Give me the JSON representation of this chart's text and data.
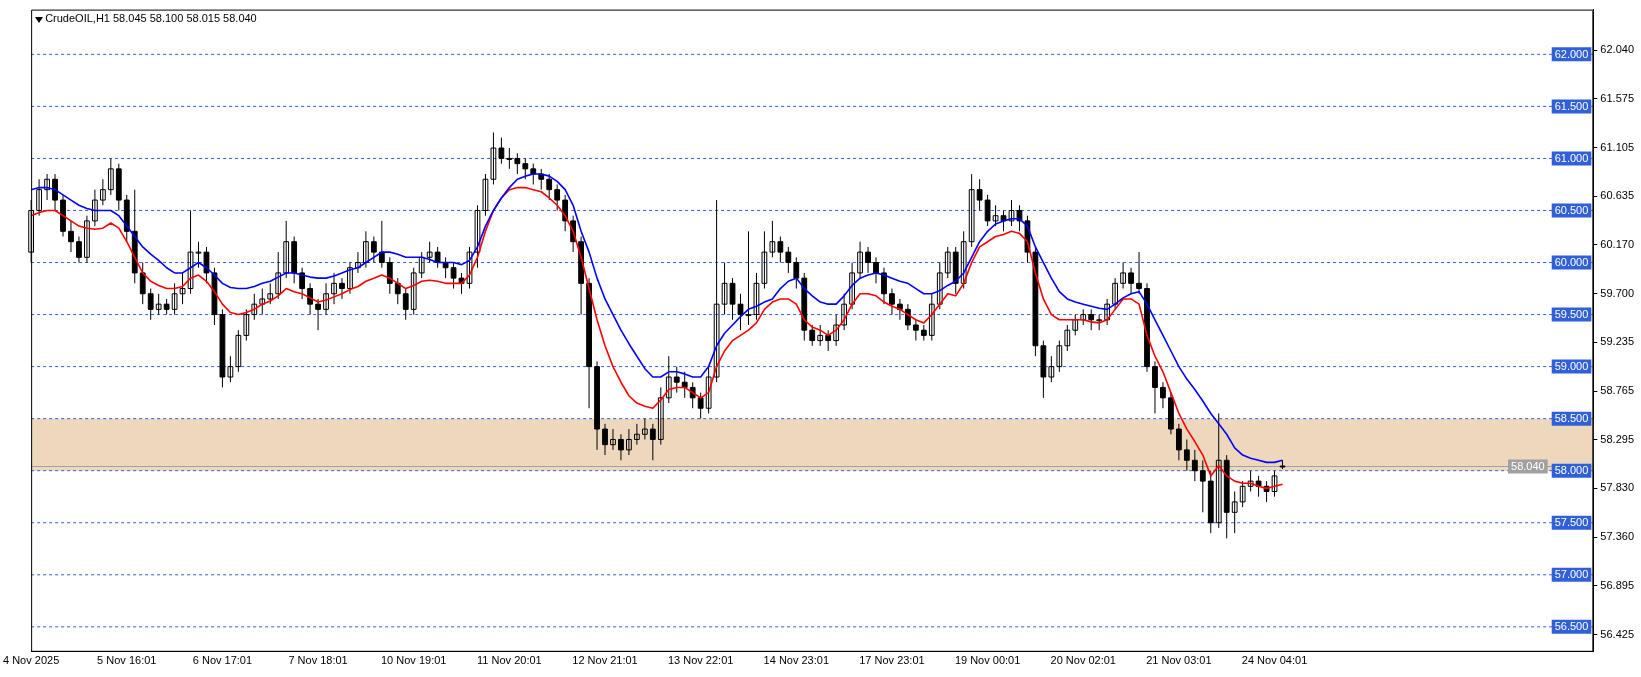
{
  "chart_data": {
    "type": "candlestick",
    "title": "CrudeOIL,H1 58.045 58.100 58.015 58.040",
    "color": "#000000",
    "categories": [
      "4 Nov 2025",
      null,
      null,
      null,
      null,
      null,
      null,
      null,
      null,
      null,
      null,
      null,
      "5 Nov 16:01",
      null,
      null,
      null,
      null,
      null,
      null,
      null,
      null,
      null,
      null,
      null,
      "6 Nov 17:01",
      null,
      null,
      null,
      null,
      null,
      null,
      null,
      null,
      null,
      null,
      null,
      "7 Nov 18:01",
      null,
      null,
      null,
      null,
      null,
      null,
      null,
      null,
      null,
      null,
      null,
      "10 Nov 19:01",
      null,
      null,
      null,
      null,
      null,
      null,
      null,
      null,
      null,
      null,
      null,
      "11 Nov 20:01",
      null,
      null,
      null,
      null,
      null,
      null,
      null,
      null,
      null,
      null,
      null,
      "12 Nov 21:01",
      null,
      null,
      null,
      null,
      null,
      null,
      null,
      null,
      null,
      null,
      null,
      "13 Nov 22:01",
      null,
      null,
      null,
      null,
      null,
      null,
      null,
      null,
      null,
      null,
      null,
      "14 Nov 23:01",
      null,
      null,
      null,
      null,
      null,
      null,
      null,
      null,
      null,
      null,
      null,
      "17 Nov 23:01",
      null,
      null,
      null,
      null,
      null,
      null,
      null,
      null,
      null,
      null,
      null,
      "19 Nov 00:01",
      null,
      null,
      null,
      null,
      null,
      null,
      null,
      null,
      null,
      null,
      null,
      "20 Nov 02:01",
      null,
      null,
      null,
      null,
      null,
      null,
      null,
      null,
      null,
      null,
      null,
      "21 Nov 03:01",
      null,
      null,
      null,
      null,
      null,
      null,
      null,
      null,
      null,
      null,
      null,
      "24 Nov 04:01",
      null,
      null,
      null,
      null,
      null,
      null,
      null,
      null,
      null,
      null,
      null,
      null,
      null,
      null,
      null,
      null,
      null,
      null,
      null,
      null,
      null,
      null,
      null,
      null,
      null,
      null,
      null,
      null,
      null,
      null,
      null,
      null,
      null,
      null,
      null,
      null,
      null,
      null,
      null,
      null
    ],
    "ohlc": [
      [
        60.1,
        60.6,
        60.0,
        60.5
      ],
      [
        60.5,
        60.8,
        60.45,
        60.7
      ],
      [
        60.7,
        60.85,
        60.6,
        60.8
      ],
      [
        60.8,
        60.85,
        60.5,
        60.6
      ],
      [
        60.6,
        60.65,
        60.25,
        60.3
      ],
      [
        60.3,
        60.4,
        60.1,
        60.2
      ],
      [
        60.2,
        60.25,
        60.0,
        60.05
      ],
      [
        60.05,
        60.45,
        60.0,
        60.4
      ],
      [
        60.4,
        60.7,
        60.35,
        60.6
      ],
      [
        60.6,
        60.8,
        60.55,
        60.7
      ],
      [
        60.7,
        61.0,
        60.65,
        60.9
      ],
      [
        60.9,
        60.95,
        60.5,
        60.6
      ],
      [
        60.6,
        60.65,
        60.2,
        60.3
      ],
      [
        60.3,
        60.7,
        59.8,
        59.9
      ],
      [
        59.9,
        60.0,
        59.6,
        59.7
      ],
      [
        59.7,
        59.75,
        59.45,
        59.55
      ],
      [
        59.55,
        59.7,
        59.5,
        59.6
      ],
      [
        59.6,
        59.65,
        59.5,
        59.55
      ],
      [
        59.55,
        59.8,
        59.5,
        59.7
      ],
      [
        59.7,
        59.9,
        59.6,
        59.75
      ],
      [
        59.75,
        60.5,
        59.7,
        60.1
      ],
      [
        60.1,
        60.2,
        59.95,
        60.1
      ],
      [
        60.1,
        60.15,
        59.8,
        59.9
      ],
      [
        59.9,
        59.95,
        59.4,
        59.5
      ],
      [
        59.5,
        59.55,
        58.8,
        58.9
      ],
      [
        58.9,
        59.1,
        58.85,
        59.0
      ],
      [
        59.0,
        59.35,
        58.95,
        59.3
      ],
      [
        59.3,
        59.55,
        59.25,
        59.5
      ],
      [
        59.5,
        59.7,
        59.45,
        59.6
      ],
      [
        59.6,
        59.75,
        59.5,
        59.65
      ],
      [
        59.65,
        59.8,
        59.6,
        59.7
      ],
      [
        59.7,
        60.1,
        59.65,
        59.9
      ],
      [
        59.9,
        60.4,
        59.85,
        60.2
      ],
      [
        60.2,
        60.25,
        59.8,
        59.9
      ],
      [
        59.9,
        59.95,
        59.65,
        59.75
      ],
      [
        59.75,
        59.8,
        59.5,
        59.6
      ],
      [
        59.6,
        59.65,
        59.35,
        59.55
      ],
      [
        59.55,
        59.8,
        59.5,
        59.7
      ],
      [
        59.7,
        59.9,
        59.6,
        59.8
      ],
      [
        59.8,
        59.85,
        59.65,
        59.75
      ],
      [
        59.75,
        60.0,
        59.7,
        59.95
      ],
      [
        59.95,
        60.1,
        59.9,
        60.0
      ],
      [
        60.0,
        60.3,
        59.95,
        60.2
      ],
      [
        60.2,
        60.25,
        60.0,
        60.1
      ],
      [
        60.1,
        60.4,
        59.95,
        60.0
      ],
      [
        60.0,
        60.05,
        59.7,
        59.8
      ],
      [
        59.8,
        59.85,
        59.6,
        59.7
      ],
      [
        59.7,
        59.75,
        59.45,
        59.55
      ],
      [
        59.55,
        59.95,
        59.5,
        59.9
      ],
      [
        59.9,
        60.1,
        59.85,
        60.05
      ],
      [
        60.05,
        60.2,
        60.0,
        60.1
      ],
      [
        60.1,
        60.15,
        59.95,
        60.0
      ],
      [
        60.0,
        60.05,
        59.85,
        59.95
      ],
      [
        59.95,
        60.0,
        59.75,
        59.85
      ],
      [
        59.85,
        59.9,
        59.7,
        59.8
      ],
      [
        59.8,
        60.15,
        59.75,
        60.1
      ],
      [
        60.1,
        60.55,
        59.95,
        60.5
      ],
      [
        60.5,
        60.85,
        60.45,
        60.8
      ],
      [
        60.8,
        61.25,
        60.75,
        61.1
      ],
      [
        61.1,
        61.2,
        60.95,
        61.0
      ],
      [
        61.0,
        61.1,
        60.9,
        61.0
      ],
      [
        61.0,
        61.05,
        60.85,
        60.95
      ],
      [
        60.95,
        61.0,
        60.8,
        60.9
      ],
      [
        60.9,
        60.95,
        60.75,
        60.85
      ],
      [
        60.85,
        60.9,
        60.7,
        60.8
      ],
      [
        60.8,
        60.85,
        60.6,
        60.7
      ],
      [
        60.7,
        60.75,
        60.5,
        60.6
      ],
      [
        60.6,
        60.65,
        60.3,
        60.4
      ],
      [
        60.4,
        60.45,
        60.1,
        60.2
      ],
      [
        60.2,
        60.25,
        59.5,
        59.8
      ],
      [
        59.8,
        59.85,
        58.6,
        59.0
      ],
      [
        59.0,
        59.05,
        58.2,
        58.4
      ],
      [
        58.4,
        58.45,
        58.15,
        58.25
      ],
      [
        58.25,
        58.4,
        58.2,
        58.3
      ],
      [
        58.3,
        58.35,
        58.1,
        58.2
      ],
      [
        58.2,
        58.4,
        58.15,
        58.3
      ],
      [
        58.3,
        58.45,
        58.25,
        58.35
      ],
      [
        58.35,
        58.5,
        58.3,
        58.4
      ],
      [
        58.4,
        58.45,
        58.1,
        58.3
      ],
      [
        58.3,
        58.8,
        58.25,
        58.7
      ],
      [
        58.7,
        59.1,
        58.65,
        58.9
      ],
      [
        58.9,
        59.0,
        58.75,
        58.85
      ],
      [
        58.85,
        58.95,
        58.7,
        58.8
      ],
      [
        58.8,
        58.85,
        58.6,
        58.7
      ],
      [
        58.7,
        58.75,
        58.5,
        58.6
      ],
      [
        58.6,
        59.0,
        58.55,
        58.9
      ],
      [
        58.9,
        60.6,
        58.85,
        59.6
      ],
      [
        59.6,
        60.0,
        59.5,
        59.8
      ],
      [
        59.8,
        59.85,
        59.45,
        59.6
      ],
      [
        59.6,
        59.7,
        59.35,
        59.5
      ],
      [
        59.5,
        60.3,
        59.4,
        59.5
      ],
      [
        59.5,
        59.9,
        59.45,
        59.8
      ],
      [
        59.8,
        60.3,
        59.75,
        60.1
      ],
      [
        60.1,
        60.4,
        60.05,
        60.2
      ],
      [
        60.2,
        60.25,
        60.0,
        60.1
      ],
      [
        60.1,
        60.15,
        59.9,
        60.0
      ],
      [
        60.0,
        60.05,
        59.75,
        59.85
      ],
      [
        59.85,
        59.9,
        59.25,
        59.35
      ],
      [
        59.35,
        59.4,
        59.2,
        59.25
      ],
      [
        59.25,
        59.4,
        59.2,
        59.3
      ],
      [
        59.3,
        59.35,
        59.15,
        59.25
      ],
      [
        59.25,
        59.5,
        59.2,
        59.4
      ],
      [
        59.4,
        59.7,
        59.35,
        59.6
      ],
      [
        59.6,
        60.0,
        59.55,
        59.9
      ],
      [
        59.9,
        60.2,
        59.85,
        60.1
      ],
      [
        60.1,
        60.15,
        59.9,
        60.0
      ],
      [
        60.0,
        60.05,
        59.8,
        59.9
      ],
      [
        59.9,
        59.95,
        59.6,
        59.7
      ],
      [
        59.7,
        59.75,
        59.5,
        59.6
      ],
      [
        59.6,
        59.65,
        59.45,
        59.55
      ],
      [
        59.55,
        59.6,
        59.35,
        59.4
      ],
      [
        59.4,
        59.45,
        59.25,
        59.35
      ],
      [
        59.35,
        59.4,
        59.25,
        59.3
      ],
      [
        59.3,
        59.7,
        59.25,
        59.6
      ],
      [
        59.6,
        60.0,
        59.55,
        59.9
      ],
      [
        59.9,
        60.15,
        59.85,
        60.1
      ],
      [
        60.1,
        60.15,
        59.7,
        59.8
      ],
      [
        59.8,
        60.3,
        59.75,
        60.2
      ],
      [
        60.2,
        60.85,
        60.15,
        60.7
      ],
      [
        60.7,
        60.8,
        60.5,
        60.6
      ],
      [
        60.6,
        60.65,
        60.35,
        60.4
      ],
      [
        60.4,
        60.55,
        60.35,
        60.45
      ],
      [
        60.45,
        60.5,
        60.3,
        60.4
      ],
      [
        60.4,
        60.6,
        60.35,
        60.5
      ],
      [
        60.5,
        60.55,
        60.3,
        60.4
      ],
      [
        60.4,
        60.45,
        60.0,
        60.1
      ],
      [
        60.1,
        60.15,
        59.1,
        59.2
      ],
      [
        59.2,
        59.25,
        58.7,
        58.9
      ],
      [
        58.9,
        59.1,
        58.85,
        59.0
      ],
      [
        59.0,
        59.25,
        58.95,
        59.2
      ],
      [
        59.2,
        59.4,
        59.15,
        59.35
      ],
      [
        59.35,
        59.5,
        59.3,
        59.45
      ],
      [
        59.45,
        59.55,
        59.4,
        59.5
      ],
      [
        59.5,
        59.55,
        59.35,
        59.45
      ],
      [
        59.45,
        59.5,
        59.35,
        59.45
      ],
      [
        59.45,
        59.65,
        59.4,
        59.6
      ],
      [
        59.6,
        59.85,
        59.55,
        59.8
      ],
      [
        59.8,
        60.0,
        59.75,
        59.9
      ],
      [
        59.9,
        59.95,
        59.7,
        59.8
      ],
      [
        59.8,
        60.1,
        59.7,
        59.75
      ],
      [
        59.75,
        59.8,
        58.95,
        59.0
      ],
      [
        59.0,
        59.05,
        58.55,
        58.8
      ],
      [
        58.8,
        58.85,
        58.6,
        58.7
      ],
      [
        58.7,
        58.75,
        58.35,
        58.4
      ],
      [
        58.4,
        58.45,
        58.1,
        58.2
      ],
      [
        58.2,
        58.3,
        58.0,
        58.1
      ],
      [
        58.1,
        58.2,
        57.9,
        58.0
      ],
      [
        58.0,
        58.1,
        57.6,
        57.9
      ],
      [
        57.9,
        58.0,
        57.4,
        57.5
      ],
      [
        57.5,
        58.55,
        57.45,
        58.1
      ],
      [
        58.1,
        58.15,
        57.35,
        57.6
      ],
      [
        57.6,
        57.8,
        57.4,
        57.7
      ],
      [
        57.7,
        57.9,
        57.65,
        57.85
      ],
      [
        57.85,
        58.0,
        57.8,
        57.9
      ],
      [
        57.9,
        57.95,
        57.75,
        57.85
      ],
      [
        57.85,
        57.9,
        57.7,
        57.8
      ],
      [
        57.8,
        58.0,
        57.75,
        57.95
      ],
      [
        58.045,
        58.1,
        58.015,
        58.04
      ],
      null,
      null,
      null,
      null,
      null,
      null,
      null,
      null,
      null,
      null,
      null,
      null,
      null,
      null,
      null,
      null,
      null,
      null,
      null,
      null,
      null,
      null,
      null,
      null,
      null,
      null,
      null,
      null,
      null,
      null,
      null,
      null,
      null,
      null,
      null,
      null,
      null,
      null,
      null
    ],
    "series": [
      {
        "type": "line",
        "color": "#0000ff",
        "values": [
          60.7,
          60.72,
          60.72,
          60.7,
          60.65,
          60.6,
          60.55,
          60.52,
          60.5,
          60.5,
          60.5,
          60.45,
          60.35,
          60.25,
          60.15,
          60.08,
          60.02,
          59.95,
          59.9,
          59.9,
          59.95,
          60.0,
          59.95,
          59.88,
          59.8,
          59.76,
          59.75,
          59.75,
          59.77,
          59.8,
          59.82,
          59.86,
          59.9,
          59.9,
          59.88,
          59.86,
          59.85,
          59.85,
          59.87,
          59.9,
          59.93,
          59.95,
          60.0,
          60.05,
          60.1,
          60.1,
          60.08,
          60.05,
          60.05,
          60.05,
          60.03,
          60.0,
          60.0,
          60.0,
          59.98,
          60.02,
          60.15,
          60.35,
          60.5,
          60.62,
          60.72,
          60.8,
          60.83,
          60.85,
          60.85,
          60.83,
          60.78,
          60.7,
          60.55,
          60.3,
          60.1,
          59.85,
          59.65,
          59.5,
          59.35,
          59.22,
          59.1,
          58.98,
          58.9,
          58.9,
          58.95,
          58.95,
          58.93,
          58.9,
          58.9,
          59.0,
          59.2,
          59.32,
          59.4,
          59.48,
          59.55,
          59.58,
          59.62,
          59.65,
          59.75,
          59.82,
          59.85,
          59.75,
          59.68,
          59.62,
          59.6,
          59.6,
          59.68,
          59.78,
          59.85,
          59.88,
          59.9,
          59.88,
          59.85,
          59.82,
          59.8,
          59.75,
          59.7,
          59.7,
          59.73,
          59.78,
          59.82,
          59.9,
          60.05,
          60.2,
          60.3,
          60.37,
          60.4,
          60.42,
          60.42,
          60.35,
          60.15,
          60.0,
          59.85,
          59.72,
          59.65,
          59.62,
          59.6,
          59.58,
          59.56,
          59.55,
          59.6,
          59.66,
          59.7,
          59.72,
          59.6,
          59.45,
          59.3,
          59.15,
          59.0,
          58.88,
          58.78,
          58.67,
          58.55,
          58.45,
          58.35,
          58.22,
          58.15,
          58.12,
          58.1,
          58.08,
          58.08,
          58.1,
          null,
          null,
          null,
          null,
          null,
          null,
          null,
          null,
          null,
          null,
          null,
          null,
          null,
          null,
          null,
          null,
          null,
          null,
          null,
          null,
          null,
          null,
          null,
          null,
          null,
          null,
          null,
          null,
          null,
          null,
          null,
          null,
          null,
          null,
          null,
          null,
          null,
          null,
          null
        ]
      },
      {
        "type": "line",
        "color": "#ff0000",
        "values": [
          60.45,
          60.48,
          60.5,
          60.5,
          60.45,
          60.4,
          60.35,
          60.33,
          60.32,
          60.33,
          60.38,
          60.33,
          60.2,
          60.05,
          59.9,
          59.82,
          59.78,
          59.75,
          59.75,
          59.77,
          59.85,
          59.88,
          59.82,
          59.72,
          59.6,
          59.52,
          59.5,
          59.52,
          59.55,
          59.6,
          59.63,
          59.68,
          59.75,
          59.72,
          59.7,
          59.66,
          59.62,
          59.64,
          59.67,
          59.7,
          59.74,
          59.77,
          59.82,
          59.85,
          59.88,
          59.85,
          59.8,
          59.75,
          59.78,
          59.82,
          59.83,
          59.82,
          59.8,
          59.8,
          59.8,
          59.88,
          60.05,
          60.3,
          60.5,
          60.62,
          60.7,
          60.72,
          60.72,
          60.7,
          60.68,
          60.62,
          60.55,
          60.45,
          60.3,
          60.05,
          59.75,
          59.45,
          59.2,
          59.0,
          58.85,
          58.72,
          58.65,
          58.62,
          58.6,
          58.68,
          58.78,
          58.8,
          58.8,
          58.75,
          58.7,
          58.75,
          59.0,
          59.15,
          59.25,
          59.3,
          59.35,
          59.42,
          59.55,
          59.62,
          59.65,
          59.65,
          59.6,
          59.45,
          59.38,
          59.35,
          59.3,
          59.35,
          59.45,
          59.6,
          59.7,
          59.7,
          59.68,
          59.62,
          59.58,
          59.55,
          59.5,
          59.45,
          59.42,
          59.5,
          59.6,
          59.7,
          59.68,
          59.8,
          60.0,
          60.15,
          60.2,
          60.25,
          60.27,
          60.3,
          60.28,
          60.2,
          59.9,
          59.65,
          59.5,
          59.45,
          59.45,
          59.45,
          59.45,
          59.43,
          59.42,
          59.45,
          59.55,
          59.65,
          59.65,
          59.6,
          59.3,
          59.1,
          58.95,
          58.75,
          58.55,
          58.4,
          58.28,
          58.15,
          57.95,
          58.05,
          57.95,
          57.9,
          57.88,
          57.88,
          57.85,
          57.83,
          57.85,
          57.87,
          null,
          null,
          null,
          null,
          null,
          null,
          null,
          null,
          null,
          null,
          null,
          null,
          null,
          null,
          null,
          null,
          null,
          null,
          null,
          null,
          null,
          null,
          null,
          null,
          null,
          null,
          null,
          null,
          null,
          null,
          null,
          null,
          null,
          null,
          null,
          null,
          null,
          null,
          null
        ]
      }
    ],
    "ylim": [
      56.26,
      62.43
    ],
    "yticks": [
      {
        "value": 56.425,
        "label": "56.425"
      },
      {
        "value": 56.895,
        "label": "56.895"
      },
      {
        "value": 57.36,
        "label": "57.360"
      },
      {
        "value": 57.83,
        "label": "57.830"
      },
      {
        "value": 58.295,
        "label": "58.295"
      },
      {
        "value": 58.765,
        "label": "58.765"
      },
      {
        "value": 59.235,
        "label": "59.235"
      },
      {
        "value": 59.7,
        "label": "59.700"
      },
      {
        "value": 60.17,
        "label": "60.170"
      },
      {
        "value": 60.635,
        "label": "60.635"
      },
      {
        "value": 61.105,
        "label": "61.105"
      },
      {
        "value": 61.575,
        "label": "61.575"
      },
      {
        "value": 62.04,
        "label": "62.040"
      }
    ],
    "ref_lines": [
      {
        "axis": "y",
        "value": 62.0,
        "label": "62.000",
        "color": "#3060d8",
        "line_style": "dashed"
      },
      {
        "axis": "y",
        "value": 61.5,
        "label": "61.500",
        "color": "#3060d8",
        "line_style": "dashed"
      },
      {
        "axis": "y",
        "value": 61.0,
        "label": "61.000",
        "color": "#3060d8",
        "line_style": "dashed"
      },
      {
        "axis": "y",
        "value": 60.5,
        "label": "60.500",
        "color": "#3060d8",
        "line_style": "dashed"
      },
      {
        "axis": "y",
        "value": 60.0,
        "label": "60.000",
        "color": "#3060d8",
        "line_style": "dashed"
      },
      {
        "axis": "y",
        "value": 59.5,
        "label": "59.500",
        "color": "#3060d8",
        "line_style": "dashed"
      },
      {
        "axis": "y",
        "value": 59.0,
        "label": "59.000",
        "color": "#3060d8",
        "line_style": "dashed"
      },
      {
        "axis": "y",
        "value": 58.5,
        "label": "58.500",
        "color": "#3060d8",
        "line_style": "dashed"
      },
      {
        "axis": "y",
        "value": 58.0,
        "label": "58.000",
        "color": "#3060d8",
        "line_style": "dashed"
      },
      {
        "axis": "y",
        "value": 57.5,
        "label": "57.500",
        "color": "#3060d8",
        "line_style": "dashed"
      },
      {
        "axis": "y",
        "value": 57.0,
        "label": "57.000",
        "color": "#3060d8",
        "line_style": "dashed"
      },
      {
        "axis": "y",
        "value": 56.5,
        "label": "56.500",
        "color": "#3060d8",
        "line_style": "dashed"
      },
      {
        "axis": "y",
        "value": 58.04,
        "label": "58.040",
        "color": "#a0a0a0",
        "line_style": "solid"
      }
    ],
    "bands": [
      {
        "axis": "y",
        "from": 58.0,
        "to": 58.5,
        "color": "#deb887"
      }
    ],
    "grid": false,
    "legend": false
  }
}
